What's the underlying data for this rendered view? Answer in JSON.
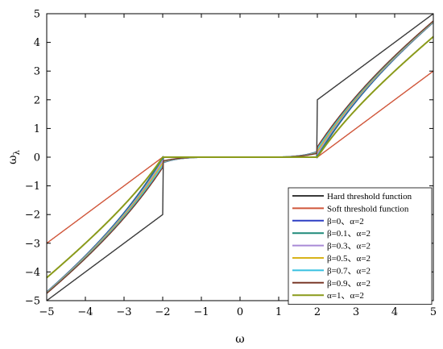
{
  "chart_data": {
    "type": "line",
    "title": "",
    "xlabel": "ω",
    "ylabel": "ωλ",
    "ylabel_main": "ω",
    "ylabel_sub": "λ",
    "xlim": [
      -5,
      5
    ],
    "ylim": [
      -5,
      5
    ],
    "x_ticks": [
      -5,
      -4,
      -3,
      -2,
      -1,
      0,
      1,
      2,
      3,
      4,
      5
    ],
    "y_ticks": [
      -5,
      -4,
      -3,
      -2,
      -1,
      0,
      1,
      2,
      3,
      4,
      5
    ],
    "x_tick_labels": [
      "−5",
      "−4",
      "−3",
      "−2",
      "−1",
      "0",
      "1",
      "2",
      "3",
      "4",
      "5"
    ],
    "y_tick_labels": [
      "−5",
      "−4",
      "−3",
      "−2",
      "−1",
      "0",
      "1",
      "2",
      "3",
      "4",
      "5"
    ],
    "threshold": 2,
    "grid": false,
    "legend_position": "bottom-right",
    "series": [
      {
        "name": "Hard threshold function",
        "kind": "hard",
        "color": "#3a3a3a"
      },
      {
        "name": "Soft threshold function",
        "kind": "soft",
        "color": "#d0563a"
      },
      {
        "name": "β=0、α=2",
        "kind": "compromise",
        "beta": 0,
        "alpha": 2,
        "color": "#2d3fc4"
      },
      {
        "name": "β=0.1、α=2",
        "kind": "compromise",
        "beta": 0.1,
        "alpha": 2,
        "color": "#1f8a7a"
      },
      {
        "name": "β=0.3、α=2",
        "kind": "compromise",
        "beta": 0.3,
        "alpha": 2,
        "color": "#a98ad6"
      },
      {
        "name": "β=0.5、α=2",
        "kind": "compromise",
        "beta": 0.5,
        "alpha": 2,
        "color": "#d8b31a"
      },
      {
        "name": "β=0.7、α=2",
        "kind": "compromise",
        "beta": 0.7,
        "alpha": 2,
        "color": "#36c0e0"
      },
      {
        "name": "β=0.9、α=2",
        "kind": "compromise",
        "beta": 0.9,
        "alpha": 2,
        "color": "#7a3a2a"
      },
      {
        "name": "α=1、α=2",
        "kind": "garrote",
        "color": "#8a9a1a"
      }
    ]
  }
}
